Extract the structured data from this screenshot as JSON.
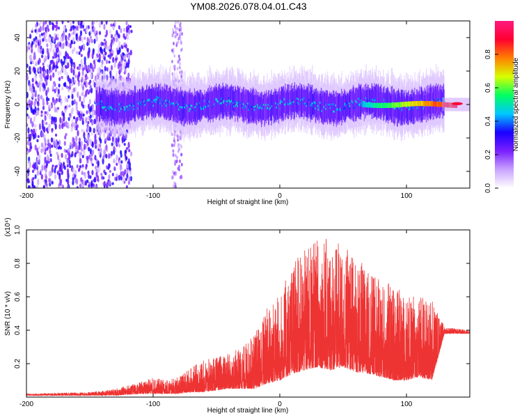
{
  "title": "YM08.2026.078.04.01.C43",
  "chart_data": [
    {
      "type": "heatmap",
      "name": "spectrogram",
      "xlabel": "Height of straight line (km)",
      "ylabel": "Frequency (Hz)",
      "xlim": [
        -200,
        150
      ],
      "ylim": [
        -50,
        50
      ],
      "xticks": [
        -200,
        -100,
        0,
        100
      ],
      "yticks": [
        -40,
        -20,
        0,
        20,
        40
      ],
      "colorbar": {
        "label": "Normalized spectral amplitude",
        "range": [
          0,
          1
        ],
        "ticks": [
          0.0,
          0.2,
          0.4,
          0.6,
          0.8
        ],
        "colors": [
          "#ffffff",
          "#c9a3ff",
          "#7a1fff",
          "#1a00ff",
          "#00c8ff",
          "#00ff60",
          "#d8ff00",
          "#ff8000",
          "#ff0030",
          "#ff1a80"
        ]
      },
      "regions": [
        {
          "x": [
            -200,
            -125
          ],
          "desc": "scattered noise across all frequencies",
          "amp": 0.25
        },
        {
          "x": [
            -145,
            130
          ],
          "center_freq": 0,
          "band_halfwidth_hz": 6,
          "amp": 0.3
        },
        {
          "x": [
            65,
            140
          ],
          "center_freq": 0,
          "amp": 0.8
        }
      ]
    },
    {
      "type": "line",
      "name": "snr",
      "xlabel": "Height of straight line (km)",
      "ylabel": "SNR (10 * v/v)",
      "yscale_label": "(x10⁴)",
      "xlim": [
        -200,
        150
      ],
      "ylim": [
        0,
        1.0
      ],
      "xticks": [
        -200,
        -100,
        0,
        100
      ],
      "yticks": [
        0.2,
        0.4,
        0.6,
        0.8,
        1.0
      ],
      "series": [
        {
          "name": "SNR",
          "color": "#ee3333",
          "x": [
            -200,
            -150,
            -130,
            -110,
            -100,
            -90,
            -80,
            -70,
            -60,
            -50,
            -40,
            -30,
            -20,
            -10,
            0,
            10,
            20,
            30,
            40,
            50,
            60,
            70,
            80,
            90,
            100,
            110,
            120,
            130,
            140,
            150
          ],
          "envelope_low": [
            0.01,
            0.01,
            0.01,
            0.02,
            0.02,
            0.02,
            0.02,
            0.03,
            0.03,
            0.04,
            0.05,
            0.05,
            0.05,
            0.08,
            0.1,
            0.14,
            0.16,
            0.18,
            0.16,
            0.18,
            0.15,
            0.14,
            0.12,
            0.1,
            0.1,
            0.12,
            0.1,
            0.38,
            0.38,
            0.38
          ],
          "envelope_high": [
            0.02,
            0.03,
            0.05,
            0.09,
            0.12,
            0.1,
            0.12,
            0.18,
            0.22,
            0.24,
            0.26,
            0.3,
            0.38,
            0.55,
            0.62,
            0.8,
            0.88,
            0.96,
            0.95,
            0.9,
            0.85,
            0.75,
            0.7,
            0.68,
            0.6,
            0.62,
            0.6,
            0.42,
            0.41,
            0.4
          ]
        }
      ]
    }
  ]
}
